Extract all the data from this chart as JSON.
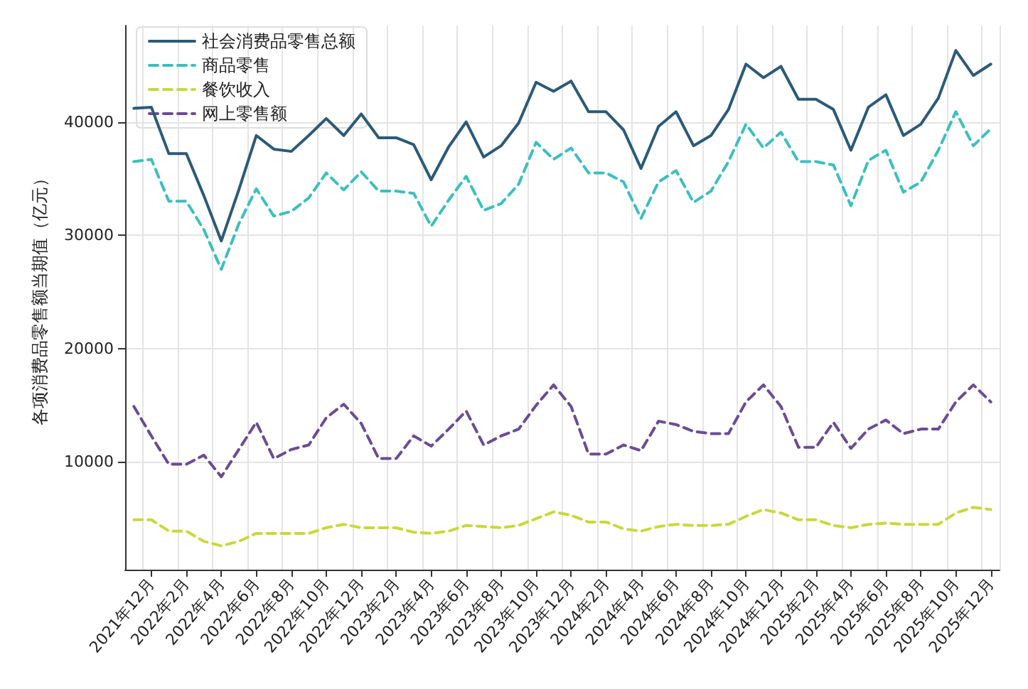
{
  "chart_data": {
    "type": "line",
    "ylabel": "各项消费品零售额当期值（亿元）",
    "categories": [
      null,
      "2021年12月",
      null,
      "2022年2月",
      null,
      "2022年4月",
      null,
      "2022年6月",
      null,
      "2022年8月",
      null,
      "2022年10月",
      null,
      "2022年12月",
      null,
      "2023年2月",
      null,
      "2023年4月",
      null,
      "2023年6月",
      null,
      "2023年8月",
      null,
      "2023年10月",
      null,
      "2023年12月",
      null,
      "2024年2月",
      null,
      "2024年4月",
      null,
      "2024年6月",
      null,
      "2024年8月",
      null,
      "2024年10月",
      null,
      "2024年12月",
      null,
      "2025年2月",
      null,
      "2025年4月",
      null,
      "2025年6月",
      null,
      "2025年8月",
      null,
      "2025年10月",
      null,
      "2025年12月"
    ],
    "series": [
      {
        "name": "社会消费品零售总额",
        "color": "#2c5a78",
        "line_style": "solid",
        "values": [
          41200,
          41300,
          37200,
          37200,
          33500,
          29500,
          34000,
          38800,
          37600,
          37400,
          38800,
          40300,
          38800,
          40700,
          38600,
          38600,
          38000,
          34900,
          37800,
          40000,
          36900,
          37900,
          39900,
          43500,
          42700,
          43600,
          40900,
          40900,
          39300,
          35900,
          39600,
          40900,
          37900,
          38800,
          41100,
          45100,
          43900,
          44900,
          42000,
          42000,
          41100,
          37500,
          41300,
          42400,
          38800,
          39800,
          42100,
          46300,
          44100,
          45100
        ]
      },
      {
        "name": "商品零售",
        "color": "#3bbfbf",
        "line_style": "dashed",
        "values": [
          36500,
          36700,
          33000,
          33000,
          30500,
          27000,
          31000,
          34100,
          31700,
          32100,
          33300,
          35500,
          34000,
          35600,
          33900,
          33900,
          33700,
          30800,
          33100,
          35200,
          32200,
          32800,
          34500,
          38200,
          36700,
          37700,
          35500,
          35500,
          34700,
          31500,
          34700,
          35700,
          32900,
          33900,
          36500,
          39800,
          37700,
          39100,
          36500,
          36500,
          36200,
          32600,
          36600,
          37500,
          33800,
          34700,
          37500,
          40900,
          37900,
          39400
        ]
      },
      {
        "name": "餐饮收入",
        "color": "#c8d83a",
        "line_style": "dashed",
        "values": [
          4900,
          4900,
          3900,
          3900,
          3000,
          2600,
          3000,
          3700,
          3700,
          3700,
          3700,
          4200,
          4500,
          4200,
          4200,
          4200,
          3800,
          3700,
          3900,
          4400,
          4300,
          4200,
          4400,
          5000,
          5600,
          5300,
          4700,
          4700,
          4100,
          3900,
          4300,
          4500,
          4400,
          4400,
          4500,
          5200,
          5800,
          5500,
          4900,
          4900,
          4400,
          4200,
          4500,
          4600,
          4500,
          4500,
          4500,
          5500,
          6000,
          5800
        ]
      },
      {
        "name": "网上零售额",
        "color": "#6a4c93",
        "line_style": "dashed",
        "values": [
          14900,
          12300,
          9800,
          9800,
          10600,
          8700,
          11100,
          13500,
          10300,
          11100,
          11500,
          13900,
          15100,
          13400,
          10300,
          10300,
          12300,
          11400,
          12900,
          14500,
          11500,
          12300,
          12900,
          15000,
          16800,
          14900,
          10700,
          10700,
          11500,
          11000,
          13600,
          13300,
          12700,
          12500,
          12500,
          15300,
          16800,
          14900,
          11300,
          11300,
          13500,
          11200,
          12900,
          13700,
          12500,
          12900,
          12900,
          15300,
          16800,
          15300
        ]
      }
    ],
    "ylim": [
      500,
      48500
    ],
    "yticks": [
      10000,
      20000,
      30000,
      40000
    ],
    "grid": true,
    "legend": "top left",
    "marker": "none"
  }
}
